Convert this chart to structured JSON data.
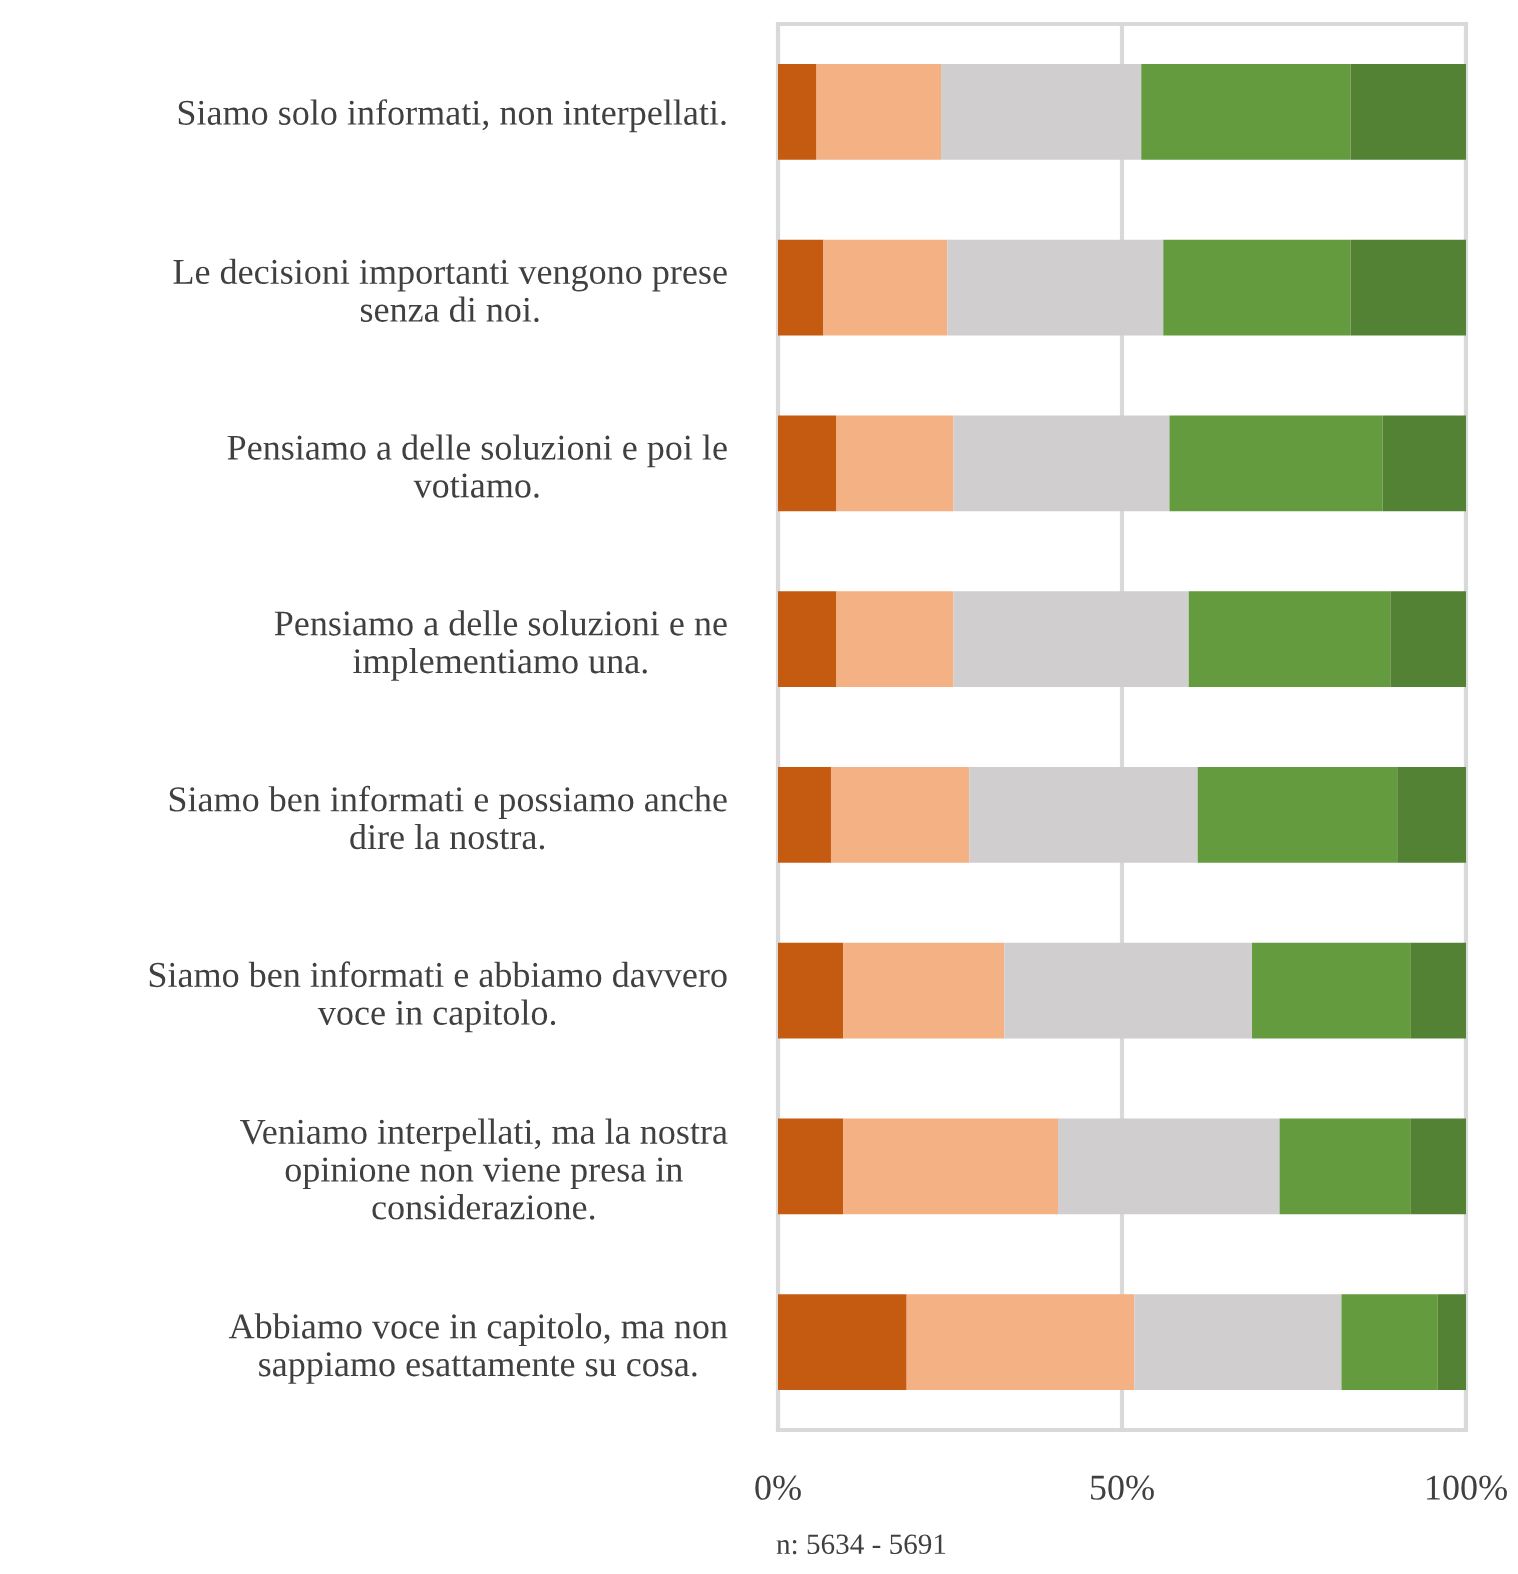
{
  "chart_data": {
    "type": "bar",
    "orientation": "horizontal",
    "stacked": true,
    "categories": [
      "Siamo solo informati, non interpellati.",
      "Le decisioni importanti vengono prese\nsenza di noi.",
      "Pensiamo a delle soluzioni e poi le\nvotiamo.",
      "Pensiamo a delle soluzioni e ne\nimplementiamo una.",
      "Siamo ben informati e possiamo anche\ndire la nostra.",
      "Siamo ben informati e abbiamo davvero\nvoce in capitolo.",
      "Veniamo interpellati, ma la nostra\nopinione non viene presa in\nconsiderazione.",
      "Abbiamo voce in capitolo, ma non\nsappiamo esattamente su cosa."
    ],
    "series": [
      {
        "color": "#c55a11",
        "values": [
          5.6,
          6.6,
          8.5,
          8.5,
          7.7,
          9.5,
          9.5,
          18.7
        ]
      },
      {
        "color": "#f4b183",
        "values": [
          18.1,
          18.0,
          17.0,
          17.0,
          20.1,
          23.4,
          31.2,
          33.1
        ]
      },
      {
        "color": "#d0cece",
        "values": [
          29.1,
          31.4,
          31.4,
          34.2,
          33.2,
          36.0,
          32.2,
          30.1
        ]
      },
      {
        "color": "#639b3e",
        "values": [
          30.4,
          27.2,
          31.0,
          29.3,
          29.0,
          23.0,
          19.0,
          14.0
        ]
      },
      {
        "color": "#548235",
        "values": [
          16.8,
          16.8,
          12.1,
          11.0,
          10.0,
          8.1,
          8.1,
          4.1
        ]
      }
    ],
    "xlim": [
      0,
      100
    ],
    "xticks": [
      {
        "value": 0,
        "label": "0%"
      },
      {
        "value": 50,
        "label": "50%"
      },
      {
        "value": 100,
        "label": "100%"
      }
    ],
    "grid": "x",
    "annotations": [
      "n: 5634 - 5691"
    ]
  }
}
